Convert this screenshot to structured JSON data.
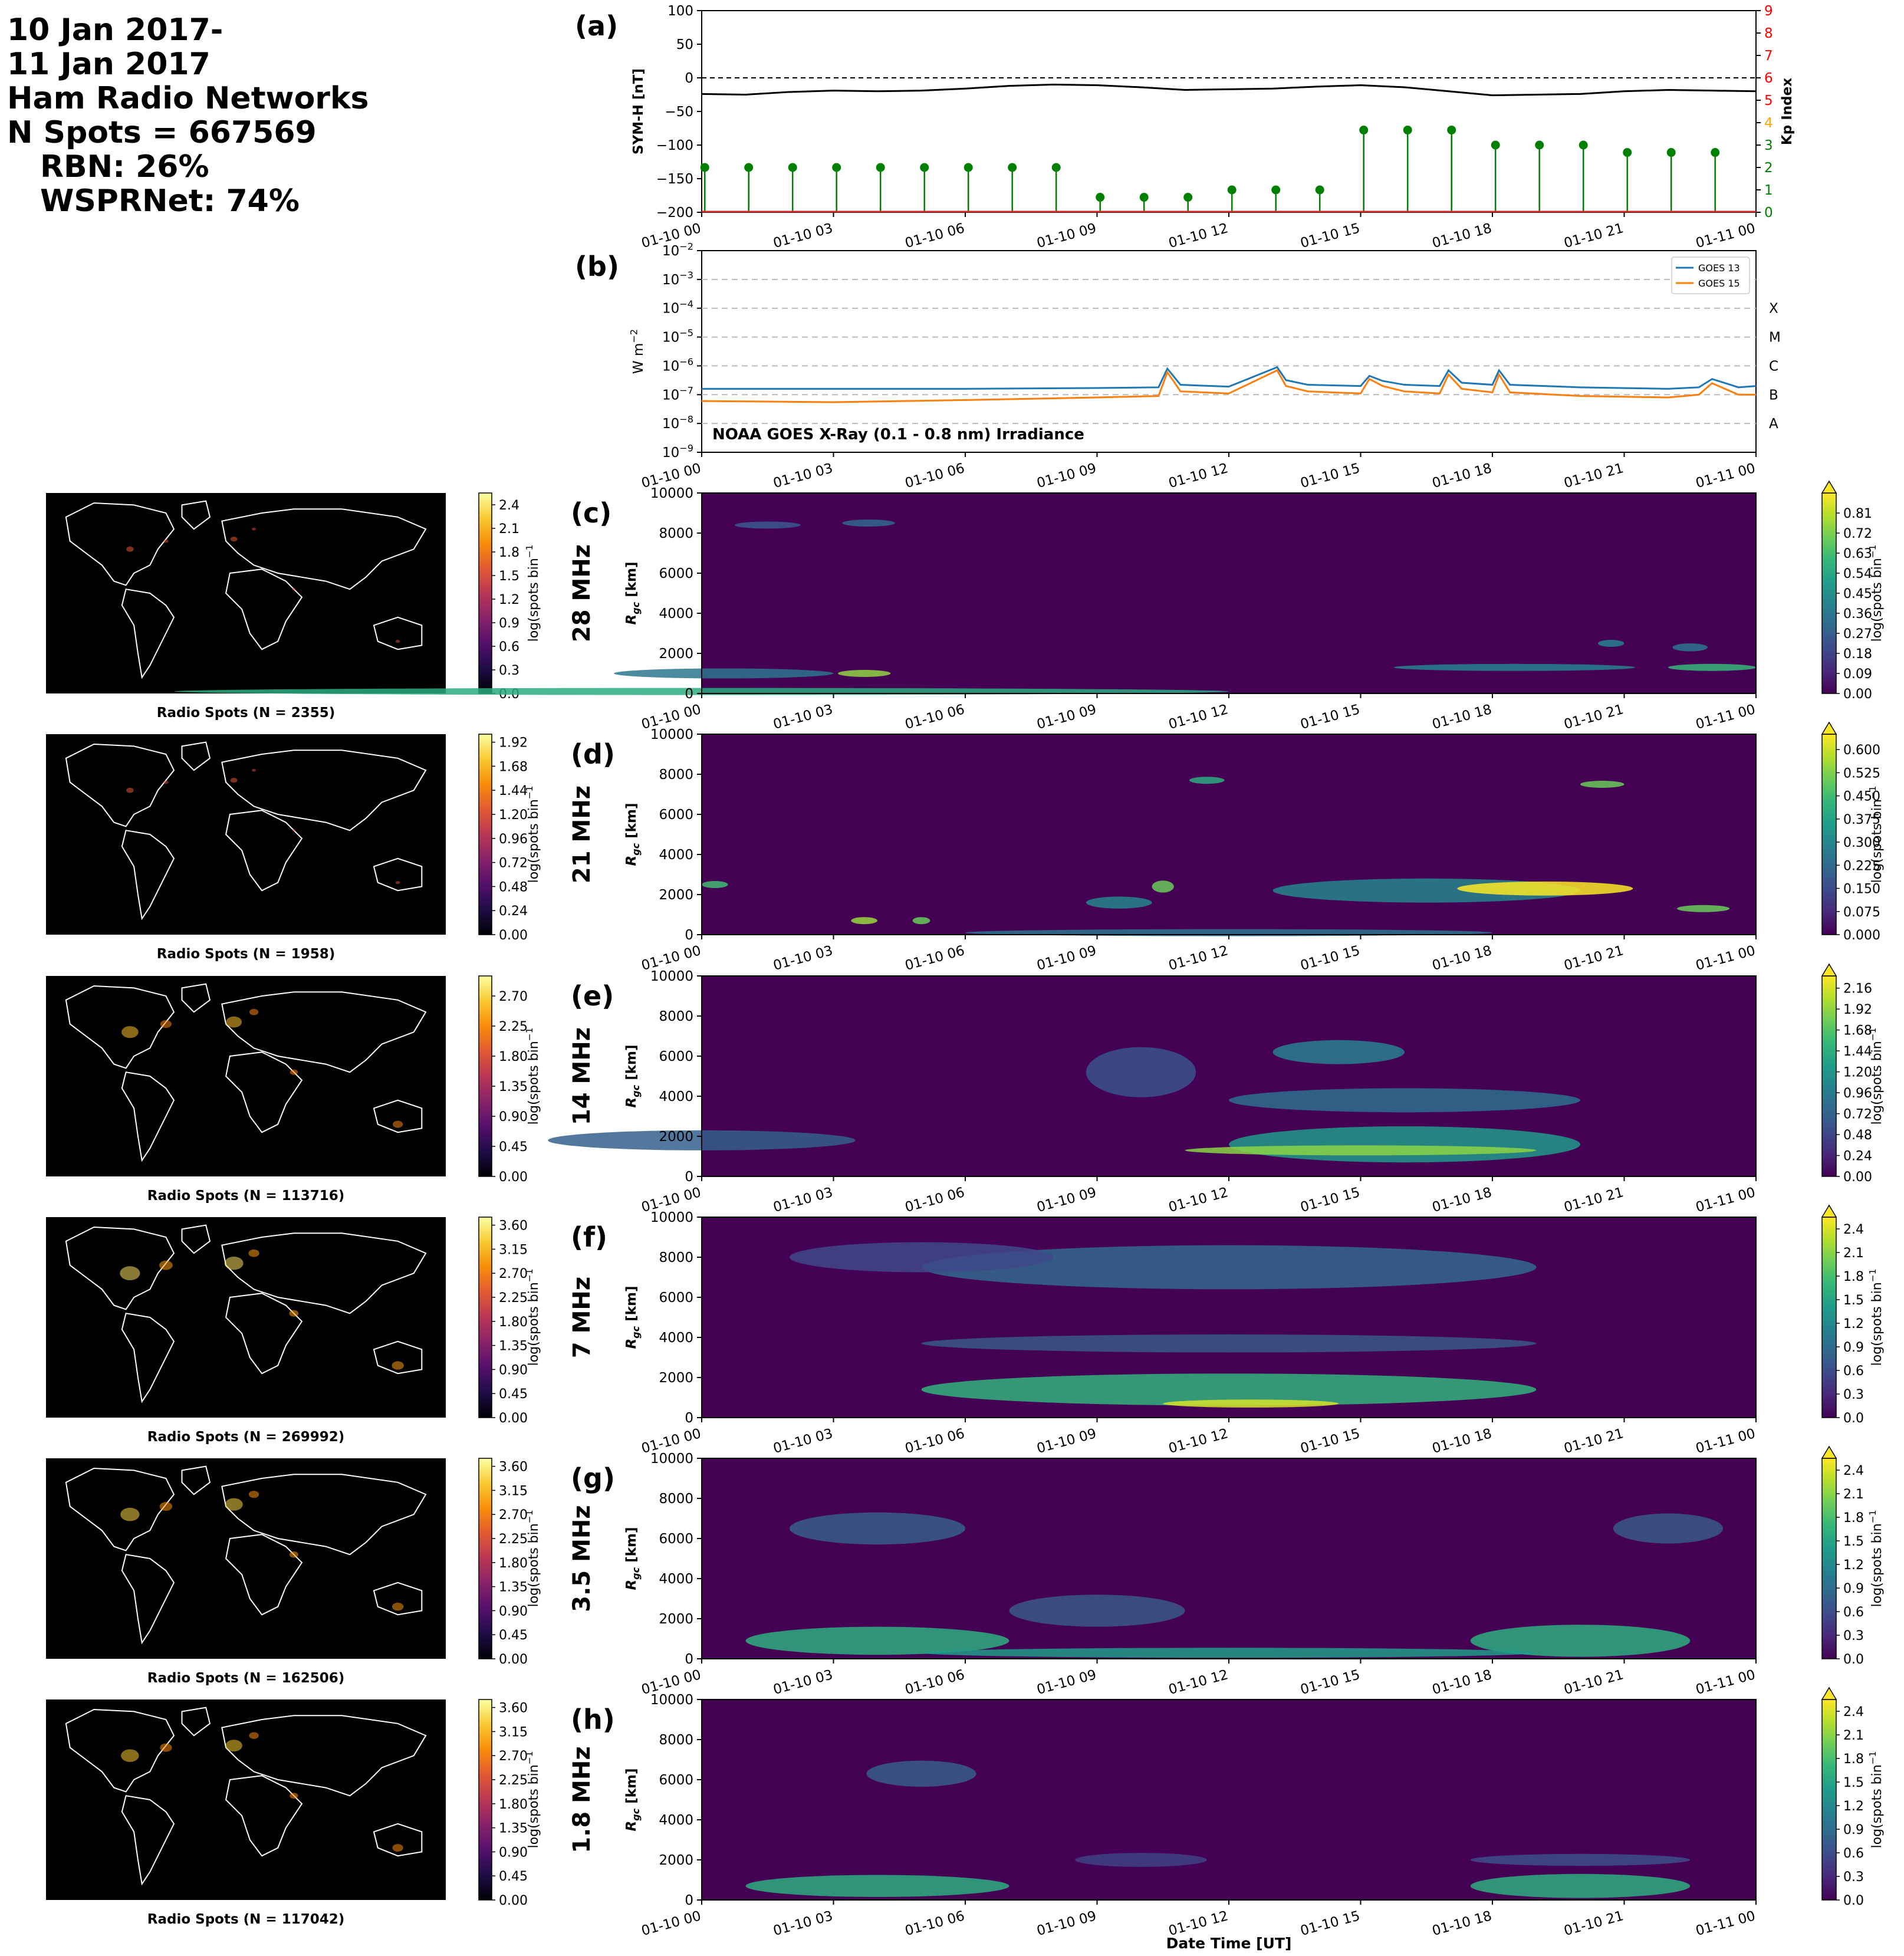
{
  "header": {
    "line1": "10 Jan 2017-",
    "line2": "11 Jan 2017",
    "line3": "Ham Radio Networks",
    "line4": "N Spots = 667569",
    "line5": "RBN: 26%",
    "line6": "WSPRNet: 74%"
  },
  "time_ticks": [
    "01-10 00",
    "01-10 03",
    "01-10 06",
    "01-10 09",
    "01-10 12",
    "01-10 15",
    "01-10 18",
    "01-10 21",
    "01-11 00"
  ],
  "xlabel_bottom": "Date Time [UT]",
  "colors": {
    "symh_line": "#000000",
    "kp_stem": "#008000",
    "kp_axis_low": "#008000",
    "kp_axis_mid": "#ffa500",
    "kp_axis_high": "#ff0000",
    "goes13": "#1f77b4",
    "goes15": "#ff7f0e",
    "map_background": "#000000",
    "map_coastline": "#ffffff",
    "rti_colormap": "viridis",
    "map_colormap": "inferno"
  },
  "chart_data": [
    {
      "panel": "(a)",
      "type": "line",
      "ylabel": "SYM-H [nT]",
      "ylim": [
        -200,
        100
      ],
      "yticks": [
        "100",
        "50",
        "0",
        "−50",
        "−100",
        "−150",
        "−200"
      ],
      "zero_line": "dashed",
      "series": [
        {
          "x_hours": [
            0,
            1,
            2,
            3,
            4,
            5,
            6,
            7,
            8,
            9,
            10,
            11,
            12,
            13,
            14,
            15,
            16,
            17,
            18,
            19,
            20,
            21,
            22,
            23,
            24
          ],
          "values": [
            -24,
            -25,
            -21,
            -19,
            -20,
            -19,
            -16,
            -12,
            -10,
            -11,
            -14,
            -18,
            -17,
            -16,
            -13,
            -11,
            -14,
            -20,
            -26,
            -25,
            -24,
            -20,
            -18,
            -19,
            -20
          ]
        }
      ],
      "secondary": {
        "type": "stem",
        "ylabel": "Kp Index",
        "ylim": [
          0,
          9
        ],
        "yticks": [
          "0",
          "1",
          "2",
          "3",
          "4",
          "5",
          "6",
          "7",
          "8",
          "9"
        ],
        "x_hours": [
          0,
          1,
          2,
          3,
          4,
          5,
          6,
          7,
          8,
          9,
          10,
          11,
          12,
          13,
          14,
          15,
          16,
          17,
          18,
          19,
          20,
          21,
          22,
          23
        ],
        "values": [
          2,
          2,
          2,
          2,
          2,
          2,
          2,
          2,
          2,
          0.67,
          0.67,
          0.67,
          1,
          1,
          1,
          3.67,
          3.67,
          3.67,
          3,
          3,
          3,
          2.67,
          2.67,
          2.67
        ]
      }
    },
    {
      "panel": "(b)",
      "type": "line",
      "ylabel": "W m⁻²",
      "yscale": "log",
      "ylim": [
        1e-09,
        0.01
      ],
      "yticks": [
        "10⁻⁹",
        "10⁻⁸",
        "10⁻⁷",
        "10⁻⁶",
        "10⁻⁵",
        "10⁻⁴",
        "10⁻³",
        "10⁻²"
      ],
      "flare_classes": [
        "A",
        "B",
        "C",
        "M",
        "X"
      ],
      "annotation": "NOAA GOES X-Ray (0.1 - 0.8 nm) Irradiance",
      "legend_position": "top-right",
      "series": [
        {
          "name": "GOES 13",
          "x_hours": [
            0,
            3,
            6,
            9,
            10.4,
            10.6,
            10.9,
            12,
            13.1,
            13.3,
            13.8,
            15,
            15.2,
            15.5,
            16,
            16.8,
            17,
            17.3,
            18,
            18.15,
            18.4,
            20,
            22,
            22.7,
            23,
            23.6,
            24
          ],
          "values": [
            1.6e-07,
            1.6e-07,
            1.6e-07,
            1.7e-07,
            1.8e-07,
            8e-07,
            2.2e-07,
            1.9e-07,
            9e-07,
            3.2e-07,
            2.2e-07,
            2e-07,
            4.5e-07,
            3e-07,
            2.2e-07,
            2e-07,
            7e-07,
            2.6e-07,
            2.2e-07,
            7e-07,
            2.2e-07,
            1.8e-07,
            1.6e-07,
            1.8e-07,
            3.5e-07,
            1.8e-07,
            2e-07
          ]
        },
        {
          "name": "GOES 15",
          "x_hours": [
            0,
            3,
            6,
            9,
            10.4,
            10.6,
            10.9,
            12,
            13.1,
            13.3,
            13.8,
            15,
            15.2,
            15.5,
            16,
            16.8,
            17,
            17.3,
            18,
            18.15,
            18.4,
            20,
            22,
            22.7,
            23,
            23.6,
            24
          ],
          "values": [
            6e-08,
            5.5e-08,
            6.5e-08,
            8e-08,
            9e-08,
            6e-07,
            1.3e-07,
            1.1e-07,
            7e-07,
            2e-07,
            1.3e-07,
            1.1e-07,
            3.5e-07,
            2e-07,
            1.3e-07,
            1.1e-07,
            5e-07,
            1.6e-07,
            1.2e-07,
            5e-07,
            1.2e-07,
            9e-08,
            8e-08,
            1e-07,
            2.5e-07,
            1e-07,
            1e-07
          ]
        }
      ]
    },
    {
      "panel": "(c)",
      "type": "heatmap",
      "band": "28 MHz",
      "ylabel": "R_gc [km]",
      "ylim": [
        0,
        10000
      ],
      "yticks": [
        "0",
        "2000",
        "4000",
        "6000",
        "8000",
        "10000"
      ],
      "colorbar": {
        "label": "log(spots bin⁻¹)",
        "range": [
          0,
          0.9
        ],
        "ticks": [
          "0.00",
          "0.09",
          "0.18",
          "0.27",
          "0.36",
          "0.45",
          "0.54",
          "0.63",
          "0.72",
          "0.81"
        ]
      },
      "blobs": [
        [
          0,
          24,
          100,
          100,
          0.55
        ],
        [
          0.5,
          5,
          1000,
          500,
          0.35
        ],
        [
          3.7,
          1.2,
          1000,
          300,
          0.75
        ],
        [
          1.5,
          1.5,
          8400,
          300,
          0.25
        ],
        [
          3.8,
          1.2,
          8500,
          200,
          0.3
        ],
        [
          18.5,
          5.5,
          1300,
          250,
          0.4
        ],
        [
          23,
          2,
          1300,
          300,
          0.6
        ],
        [
          22.5,
          0.8,
          2300,
          400,
          0.35
        ],
        [
          20.7,
          0.6,
          2500,
          300,
          0.4
        ]
      ],
      "map": {
        "title": "Radio Spots (N = 2355)",
        "colorbar_range": [
          0,
          2.55
        ],
        "colorbar_ticks": [
          "0.0",
          "0.3",
          "0.6",
          "0.9",
          "1.2",
          "1.5",
          "1.8",
          "2.1",
          "2.4"
        ]
      }
    },
    {
      "panel": "(d)",
      "type": "heatmap",
      "band": "21 MHz",
      "ylabel": "R_gc [km]",
      "ylim": [
        0,
        10000
      ],
      "yticks": [
        "0",
        "2000",
        "4000",
        "6000",
        "8000",
        "10000"
      ],
      "colorbar": {
        "label": "log(spots bin⁻¹)",
        "range": [
          0,
          0.65
        ],
        "ticks": [
          "0.000",
          "0.075",
          "0.150",
          "0.225",
          "0.300",
          "0.375",
          "0.450",
          "0.525",
          "0.600"
        ]
      },
      "blobs": [
        [
          0.3,
          0.6,
          2500,
          300,
          0.45
        ],
        [
          3.7,
          0.6,
          700,
          300,
          0.55
        ],
        [
          5,
          0.4,
          700,
          200,
          0.5
        ],
        [
          9.5,
          1.5,
          1600,
          600,
          0.3
        ],
        [
          10.5,
          0.5,
          2400,
          600,
          0.5
        ],
        [
          11.5,
          0.8,
          7700,
          200,
          0.4
        ],
        [
          12,
          12,
          100,
          200,
          0.25
        ],
        [
          16.5,
          7,
          2200,
          1200,
          0.3
        ],
        [
          19.2,
          4,
          2300,
          700,
          0.65
        ],
        [
          20.5,
          1,
          7500,
          300,
          0.5
        ],
        [
          22.8,
          1.2,
          1300,
          300,
          0.5
        ]
      ],
      "map": {
        "title": "Radio Spots (N = 1958)",
        "colorbar_range": [
          0,
          2.0
        ],
        "colorbar_ticks": [
          "0.00",
          "0.24",
          "0.48",
          "0.72",
          "0.96",
          "1.20",
          "1.44",
          "1.68",
          "1.92"
        ]
      }
    },
    {
      "panel": "(e)",
      "type": "heatmap",
      "band": "14 MHz",
      "ylabel": "R_gc [km]",
      "ylim": [
        0,
        10000
      ],
      "yticks": [
        "0",
        "2000",
        "4000",
        "6000",
        "8000",
        "10000"
      ],
      "colorbar": {
        "label": "log(spots bin⁻¹)",
        "range": [
          0,
          2.3
        ],
        "ticks": [
          "0.00",
          "0.24",
          "0.48",
          "0.72",
          "0.96",
          "1.20",
          "1.44",
          "1.68",
          "1.92",
          "2.16"
        ]
      },
      "blobs": [
        [
          0,
          7,
          1800,
          1000,
          0.7
        ],
        [
          16,
          8,
          1600,
          1800,
          1.25
        ],
        [
          16,
          8,
          3800,
          1200,
          0.85
        ],
        [
          15,
          8,
          1300,
          500,
          1.9
        ],
        [
          14.5,
          3,
          6200,
          1200,
          1.0
        ],
        [
          10,
          2.5,
          5200,
          2500,
          0.6
        ]
      ],
      "map": {
        "title": "Radio Spots (N = 113716)",
        "colorbar_range": [
          0,
          3.0
        ],
        "colorbar_ticks": [
          "0.00",
          "0.45",
          "0.90",
          "1.35",
          "1.80",
          "2.25",
          "2.70"
        ]
      }
    },
    {
      "panel": "(f)",
      "type": "heatmap",
      "band": "7 MHz",
      "ylabel": "R_gc [km]",
      "ylim": [
        0,
        10000
      ],
      "yticks": [
        "0",
        "2000",
        "4000",
        "6000",
        "8000",
        "10000"
      ],
      "colorbar": {
        "label": "log(spots bin⁻¹)",
        "range": [
          0,
          2.55
        ],
        "ticks": [
          "0.0",
          "0.3",
          "0.6",
          "0.9",
          "1.2",
          "1.5",
          "1.8",
          "2.1",
          "2.4"
        ]
      },
      "blobs": [
        [
          12,
          14,
          1400,
          1600,
          1.65
        ],
        [
          12,
          14,
          7500,
          2200,
          0.85
        ],
        [
          12,
          14,
          3700,
          900,
          0.7
        ],
        [
          12.5,
          4,
          700,
          400,
          2.4
        ],
        [
          5,
          6,
          8000,
          1500,
          0.55
        ]
      ],
      "map": {
        "title": "Radio Spots (N = 269992)",
        "colorbar_range": [
          0,
          3.75
        ],
        "colorbar_ticks": [
          "0.00",
          "0.45",
          "0.90",
          "1.35",
          "1.80",
          "2.25",
          "2.70",
          "3.15",
          "3.60"
        ]
      }
    },
    {
      "panel": "(g)",
      "type": "heatmap",
      "band": "3.5 MHz",
      "ylabel": "R_gc [km]",
      "ylim": [
        0,
        10000
      ],
      "yticks": [
        "0",
        "2000",
        "4000",
        "6000",
        "8000",
        "10000"
      ],
      "colorbar": {
        "label": "log(spots bin⁻¹)",
        "range": [
          0,
          2.55
        ],
        "ticks": [
          "0.0",
          "0.3",
          "0.6",
          "0.9",
          "1.2",
          "1.5",
          "1.8",
          "2.1",
          "2.4"
        ]
      },
      "blobs": [
        [
          4,
          6,
          900,
          1400,
          1.6
        ],
        [
          20,
          5,
          900,
          1600,
          1.6
        ],
        [
          9,
          4,
          2400,
          1600,
          0.7
        ],
        [
          4,
          4,
          6500,
          1600,
          0.75
        ],
        [
          22,
          2.5,
          6500,
          1500,
          0.7
        ],
        [
          12,
          14,
          300,
          500,
          1.4
        ]
      ],
      "map": {
        "title": "Radio Spots (N = 162506)",
        "colorbar_range": [
          0,
          3.75
        ],
        "colorbar_ticks": [
          "0.00",
          "0.45",
          "0.90",
          "1.35",
          "1.80",
          "2.25",
          "2.70",
          "3.15",
          "3.60"
        ]
      }
    },
    {
      "panel": "(h)",
      "type": "heatmap",
      "band": "1.8 MHz",
      "ylabel": "R_gc [km]",
      "ylim": [
        0,
        10000
      ],
      "yticks": [
        "0",
        "2000",
        "4000",
        "6000",
        "8000",
        "10000"
      ],
      "colorbar": {
        "label": "log(spots bin⁻¹)",
        "range": [
          0,
          2.55
        ],
        "ticks": [
          "0.0",
          "0.3",
          "0.6",
          "0.9",
          "1.2",
          "1.5",
          "1.8",
          "2.1",
          "2.4"
        ]
      },
      "blobs": [
        [
          4,
          6,
          700,
          1100,
          1.6
        ],
        [
          20,
          5,
          700,
          1200,
          1.6
        ],
        [
          5,
          2.5,
          6300,
          1300,
          0.75
        ],
        [
          20,
          5,
          2000,
          600,
          0.6
        ],
        [
          10,
          3,
          2000,
          700,
          0.5
        ]
      ],
      "map": {
        "title": "Radio Spots (N = 117042)",
        "colorbar_range": [
          0,
          3.75
        ],
        "colorbar_ticks": [
          "0.00",
          "0.45",
          "0.90",
          "1.35",
          "1.80",
          "2.25",
          "2.70",
          "3.15",
          "3.60"
        ]
      }
    }
  ]
}
